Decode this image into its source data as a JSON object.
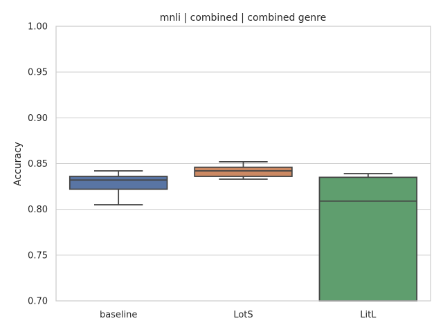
{
  "chart_data": {
    "type": "box",
    "title": "mnli | combined | combined genre",
    "xlabel": "",
    "ylabel": "Accuracy",
    "ylim": [
      0.7,
      1.0
    ],
    "yticks": [
      "0.70",
      "0.75",
      "0.80",
      "0.85",
      "0.90",
      "0.95",
      "1.00"
    ],
    "ytick_values": [
      0.7,
      0.75,
      0.8,
      0.85,
      0.9,
      0.95,
      1.0
    ],
    "grid": true,
    "categories": [
      "baseline",
      "LotS",
      "LitL"
    ],
    "boxes": [
      {
        "category": "baseline",
        "whisker_low": 0.805,
        "q1": 0.822,
        "median": 0.832,
        "q3": 0.836,
        "whisker_high": 0.842,
        "color": "#5975a4"
      },
      {
        "category": "LotS",
        "whisker_low": 0.833,
        "q1": 0.836,
        "median": 0.842,
        "q3": 0.846,
        "whisker_high": 0.852,
        "color": "#cc8963"
      },
      {
        "category": "LitL",
        "whisker_low": 0.7,
        "q1": 0.7,
        "median": 0.809,
        "q3": 0.835,
        "whisker_high": 0.839,
        "color": "#5f9e6e"
      }
    ]
  }
}
